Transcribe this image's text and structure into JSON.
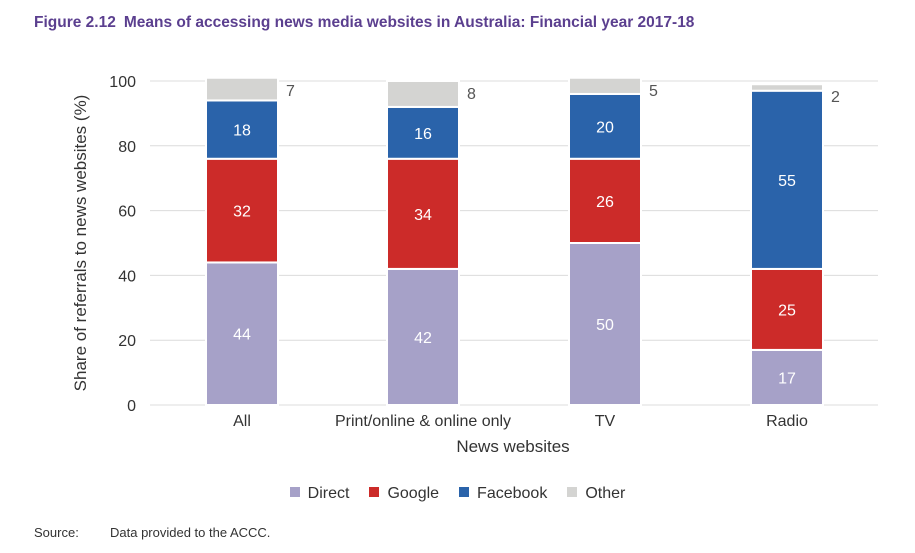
{
  "figure": {
    "number": "Figure 2.12",
    "title": "Means of accessing news media websites in Australia: Financial year 2017-18"
  },
  "colors": {
    "Direct": "#a6a1c8",
    "Google": "#cc2b29",
    "Facebook": "#2a63aa",
    "Other": "#d4d4d2",
    "grid": "#dcdcdc",
    "text": "#333333"
  },
  "chart_data": {
    "type": "bar",
    "stacked": true,
    "categories": [
      "All",
      "Print/online & online only",
      "TV",
      "Radio"
    ],
    "series": [
      {
        "name": "Direct",
        "values": [
          44,
          42,
          50,
          17
        ]
      },
      {
        "name": "Google",
        "values": [
          32,
          34,
          26,
          25
        ]
      },
      {
        "name": "Facebook",
        "values": [
          18,
          16,
          20,
          55
        ]
      },
      {
        "name": "Other",
        "values": [
          7,
          8,
          5,
          2
        ]
      }
    ],
    "xlabel": "News websites",
    "ylabel": "Share of referrals to news websites (%)",
    "ylim": [
      0,
      100
    ],
    "yticks": [
      0,
      20,
      40,
      60,
      80,
      100
    ],
    "grid": true,
    "legend_position": "bottom"
  },
  "source": {
    "label": "Source:",
    "text": "Data provided to the ACCC."
  }
}
